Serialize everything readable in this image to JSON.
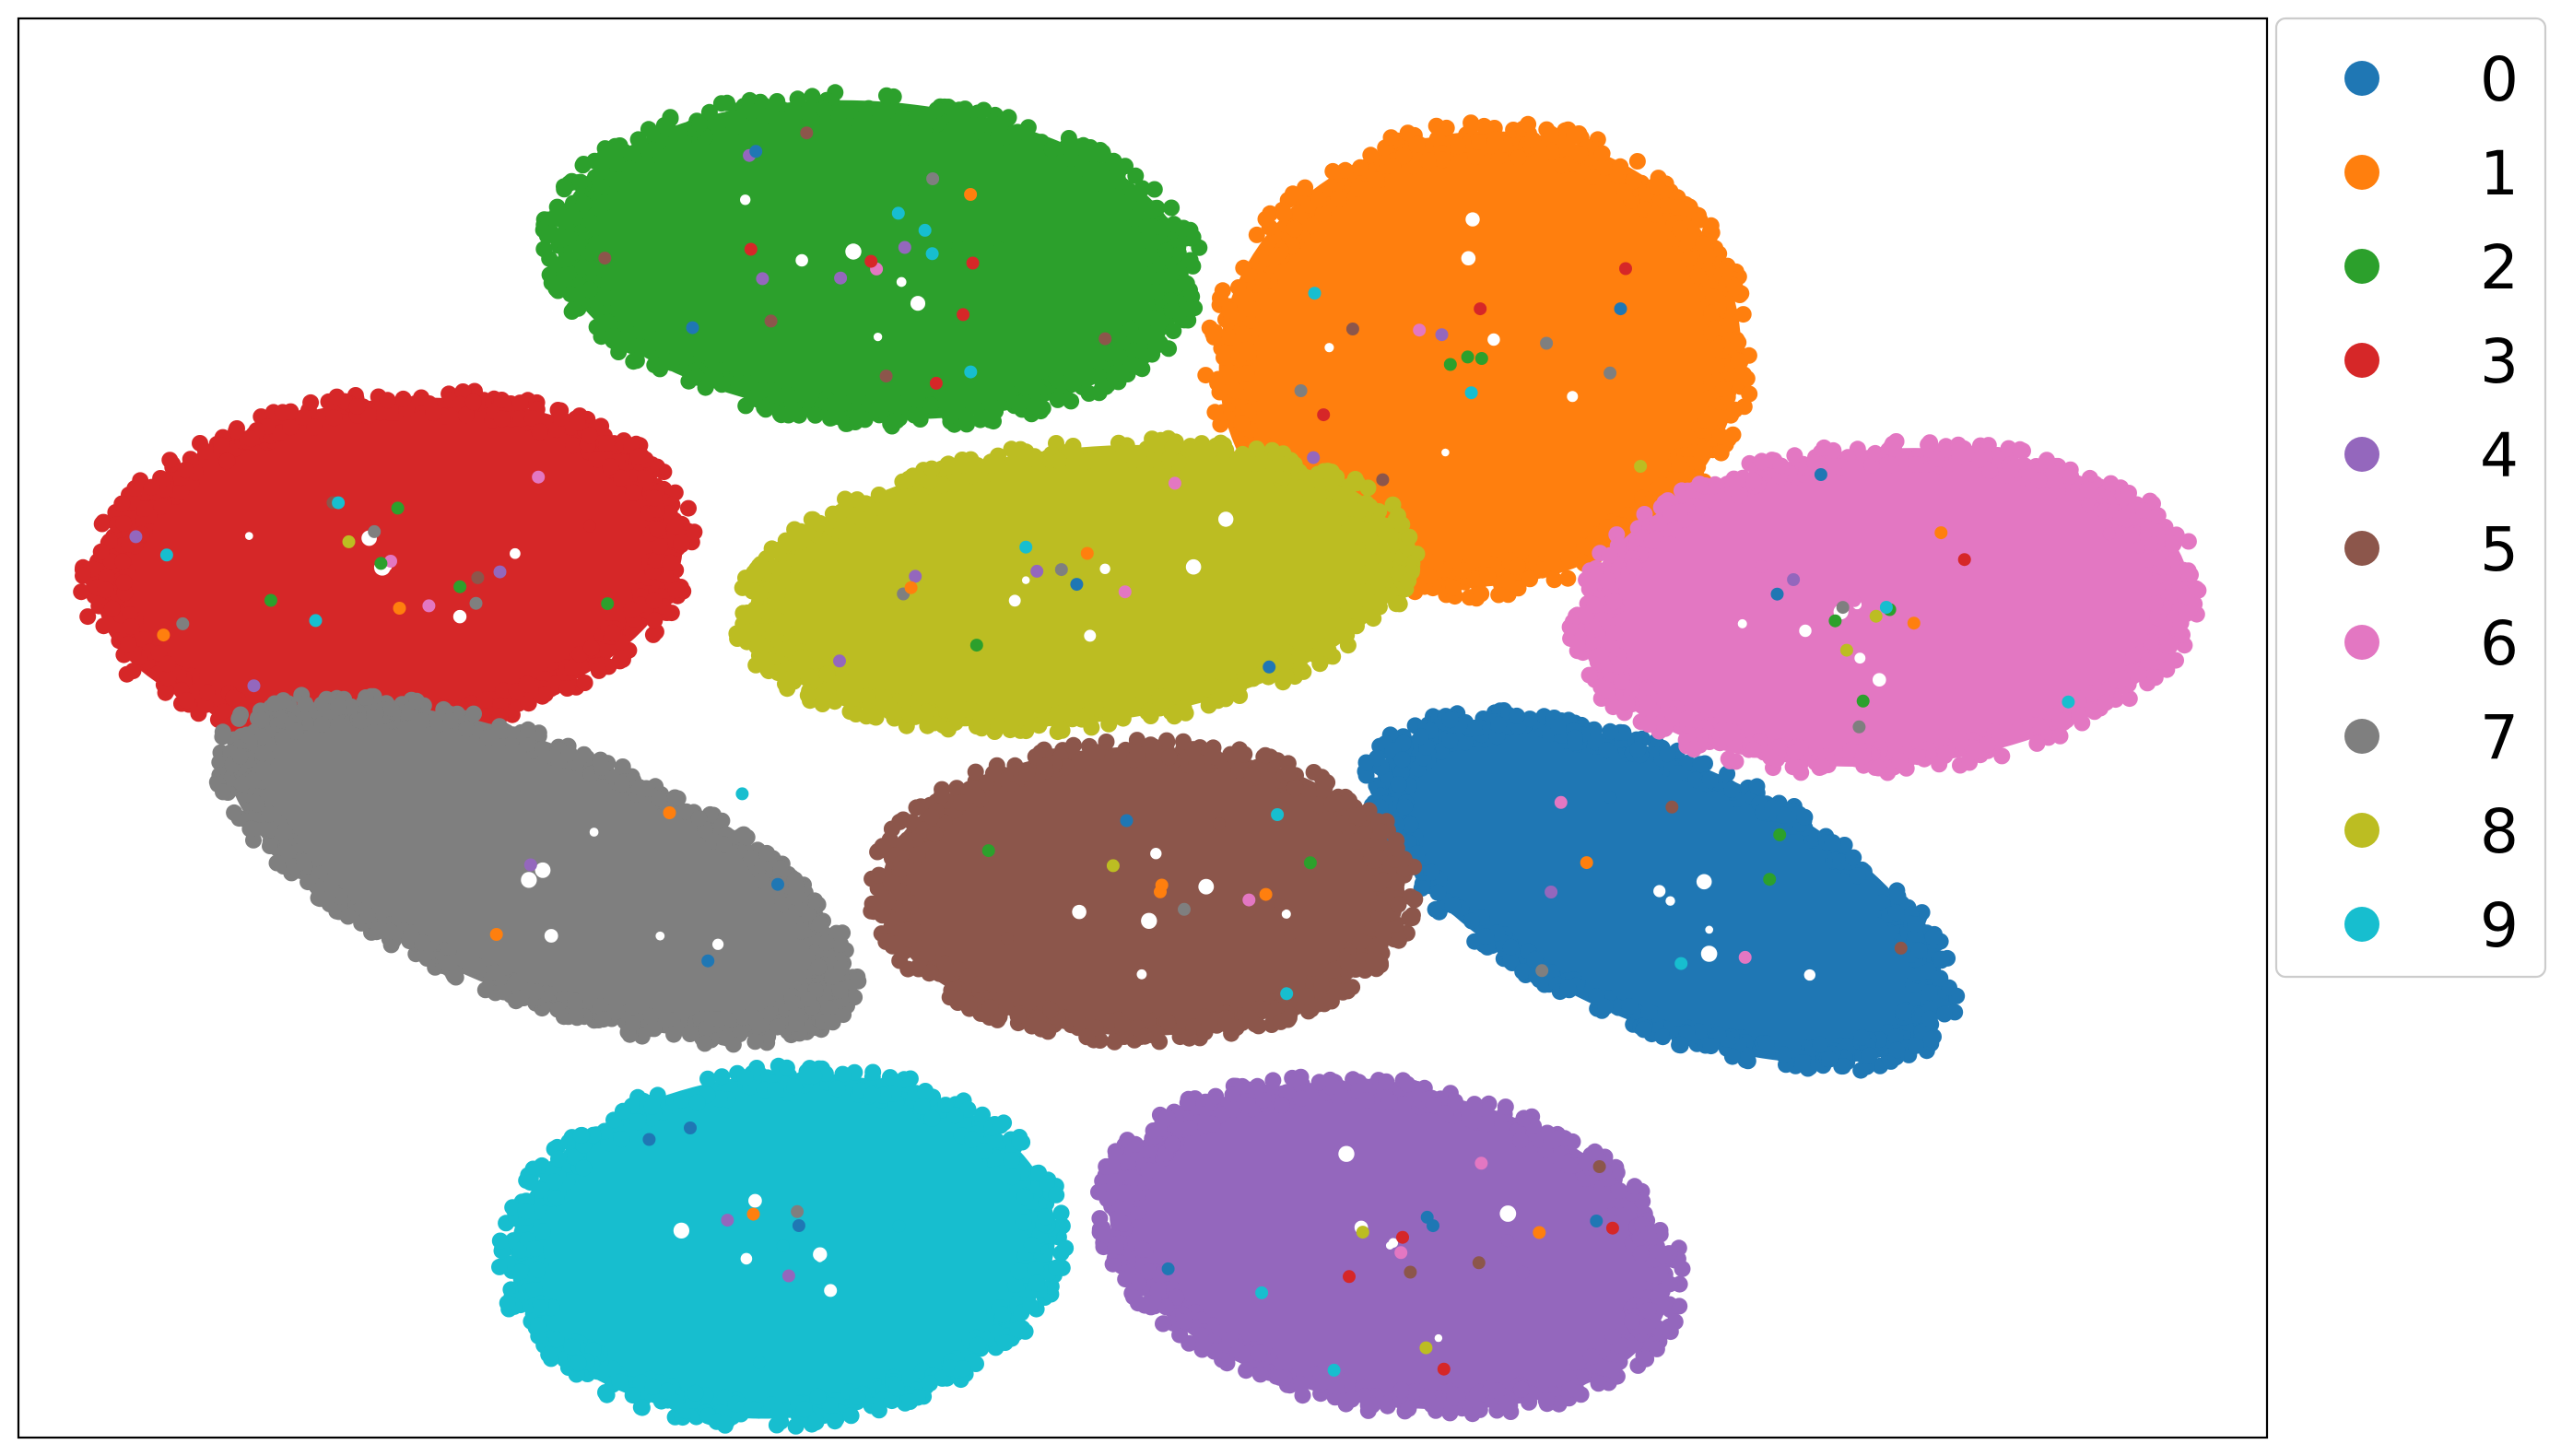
{
  "chart_data": {
    "type": "scatter",
    "title": "",
    "xlabel": "",
    "ylabel": "",
    "axes_visible": false,
    "grid": false,
    "legend_position": "outside top-right",
    "xlim": [
      -100,
      100
    ],
    "ylim": [
      -100,
      100
    ],
    "series": [
      {
        "name": "0",
        "color": "#1f77b4",
        "cluster": {
          "cx": 46,
          "cy": -23,
          "rx": 28,
          "ry": 19,
          "rot": 24
        }
      },
      {
        "name": "1",
        "color": "#ff7f0e",
        "cluster": {
          "cx": 30,
          "cy": 52,
          "rx": 24,
          "ry": 33,
          "rot": -8
        }
      },
      {
        "name": "2",
        "color": "#2ca02c",
        "cluster": {
          "cx": -24,
          "cy": 66,
          "rx": 29,
          "ry": 23,
          "rot": 4
        }
      },
      {
        "name": "3",
        "color": "#d62728",
        "cluster": {
          "cx": -67,
          "cy": 23,
          "rx": 27,
          "ry": 24,
          "rot": -6
        }
      },
      {
        "name": "4",
        "color": "#9467bd",
        "cluster": {
          "cx": 22,
          "cy": -73,
          "rx": 26,
          "ry": 23,
          "rot": 10
        }
      },
      {
        "name": "5",
        "color": "#8c564b",
        "cluster": {
          "cx": 0,
          "cy": -23,
          "rx": 24,
          "ry": 21,
          "rot": 0
        }
      },
      {
        "name": "6",
        "color": "#e377c2",
        "cluster": {
          "cx": 66,
          "cy": 17,
          "rx": 28,
          "ry": 23,
          "rot": -4
        }
      },
      {
        "name": "7",
        "color": "#7f7f7f",
        "cluster": {
          "cx": -54,
          "cy": -20,
          "rx": 30,
          "ry": 18,
          "rot": 22
        }
      },
      {
        "name": "8",
        "color": "#bcbd22",
        "cluster": {
          "cx": -6,
          "cy": 20,
          "rx": 30,
          "ry": 20,
          "rot": -6
        }
      },
      {
        "name": "9",
        "color": "#17becf",
        "cluster": {
          "cx": -32,
          "cy": -73,
          "rx": 25,
          "ry": 25,
          "rot": -4
        }
      }
    ]
  }
}
